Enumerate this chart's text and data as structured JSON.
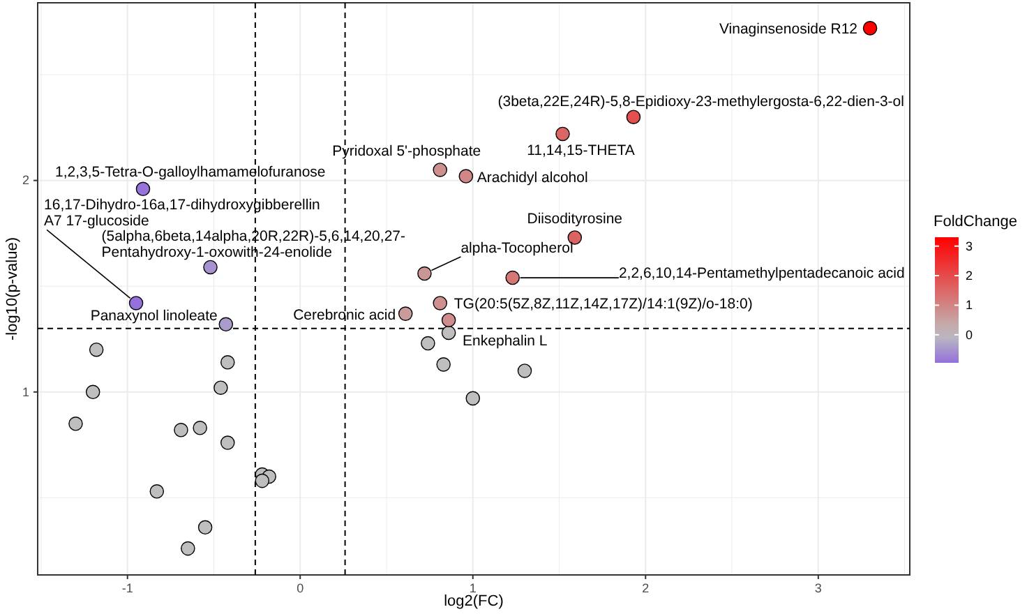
{
  "chart_data": {
    "type": "scatter",
    "xlabel": "log2(FC)",
    "ylabel": "-log10(p-value)",
    "clabel": "FoldChange",
    "xlim": [
      -1.52,
      3.53
    ],
    "ylim": [
      0.135,
      2.84
    ],
    "xticks": [
      {
        "value": -1.5,
        "label": null
      },
      -1,
      {
        "value": -0.5,
        "label": null
      },
      0,
      {
        "value": 0.5,
        "label": null
      },
      1,
      {
        "value": 1.5,
        "label": null
      },
      2,
      {
        "value": 2.5,
        "label": null
      },
      3,
      {
        "value": 3.5,
        "label": null
      }
    ],
    "yticks": [
      {
        "value": 0.5,
        "label": null
      },
      1,
      {
        "value": 1.5,
        "label": null
      },
      2,
      {
        "value": 2.5,
        "label": null
      }
    ],
    "grid": true,
    "marker": "circle",
    "clim": [
      -0.95,
      3.3
    ],
    "cticks": [
      0,
      1,
      2,
      3
    ],
    "series": [
      {
        "x": [
          3.3,
          1.93,
          1.52,
          0.81,
          0.96,
          -0.91,
          1.59,
          0.72,
          -0.52,
          1.23,
          -0.95,
          0.81,
          -0.43,
          0.61,
          0.86
        ],
        "values": [
          2.72,
          2.3,
          2.22,
          2.05,
          2.02,
          1.96,
          1.73,
          1.56,
          1.59,
          1.54,
          1.42,
          1.42,
          1.32,
          1.37,
          1.34
        ],
        "colors": [
          "#ff0000",
          "#e44f4f",
          "#dc6666",
          "#ce8f8f",
          "#d18787",
          "#9573da",
          "#dd6262",
          "#cc9595",
          "#a693ce",
          "#d67777",
          "#9370db",
          "#ce8f8f",
          "#ab9bcb",
          "#ca9b9b",
          "#cf8c8c"
        ]
      },
      {
        "color": "#bebebe",
        "x": [
          -1.18,
          -1.2,
          -1.3,
          -0.42,
          -0.46,
          -0.69,
          -0.58,
          -0.42,
          -0.83,
          -0.22,
          -0.18,
          -0.22,
          -0.55,
          -0.65,
          0.74,
          0.83,
          1.0,
          1.3,
          0.86
        ],
        "values": [
          1.2,
          1.0,
          0.85,
          1.14,
          1.02,
          0.82,
          0.83,
          0.76,
          0.53,
          0.61,
          0.6,
          0.58,
          0.36,
          0.26,
          1.23,
          1.13,
          0.97,
          1.1,
          1.28
        ]
      }
    ],
    "ref_lines": [
      {
        "axis": "x",
        "value": -0.26,
        "line_style": "dashed"
      },
      {
        "axis": "x",
        "value": 0.26,
        "line_style": "dashed"
      },
      {
        "axis": "y",
        "value": 1.3,
        "line_style": "dashed"
      }
    ],
    "annotations": [
      {
        "text": "Vinaginsenoside R12",
        "x": 3.3,
        "y": 2.72
      },
      {
        "text": "(3beta,22E,24R)-5,8-Epidioxy-23-methylergosta-6,22-dien-3-ol",
        "x": 1.93,
        "y": 2.3
      },
      {
        "text": "11,14,15-THETA",
        "x": 1.52,
        "y": 2.22
      },
      {
        "text": "Pyridoxal 5'-phosphate",
        "x": 0.81,
        "y": 2.05
      },
      {
        "text": "Arachidyl alcohol",
        "x": 0.96,
        "y": 2.02
      },
      {
        "text": "1,2,3,5-Tetra-O-galloylhamamelofuranose",
        "x": -0.91,
        "y": 1.96
      },
      {
        "text": "Diisodityrosine",
        "x": 1.59,
        "y": 1.73
      },
      {
        "text": "alpha-Tocopherol",
        "x": 0.72,
        "y": 1.56
      },
      {
        "text": "(5alpha,6beta,14alpha,20R,22R)-5,6,14,20,27-Pentahydroxy-1-oxowith-24-enolide",
        "x": -0.52,
        "y": 1.59
      },
      {
        "text": "2,2,6,10,14-Pentamethylpentadecanoic acid",
        "x": 1.23,
        "y": 1.54
      },
      {
        "text": "16,17-Dihydro-16a,17-dihydroxygibberellin A7 17-glucoside",
        "x": -0.95,
        "y": 1.42
      },
      {
        "text": "TG(20:5(5Z,8Z,11Z,14Z,17Z)/14:1(9Z)/o-18:0)",
        "x": 0.81,
        "y": 1.42
      },
      {
        "text": "Panaxynol linoleate",
        "x": -0.43,
        "y": 1.32
      },
      {
        "text": "Cerebronic acid",
        "x": 0.61,
        "y": 1.37
      },
      {
        "text": "Enkephalin L",
        "x": 0.86,
        "y": 1.34
      }
    ]
  }
}
